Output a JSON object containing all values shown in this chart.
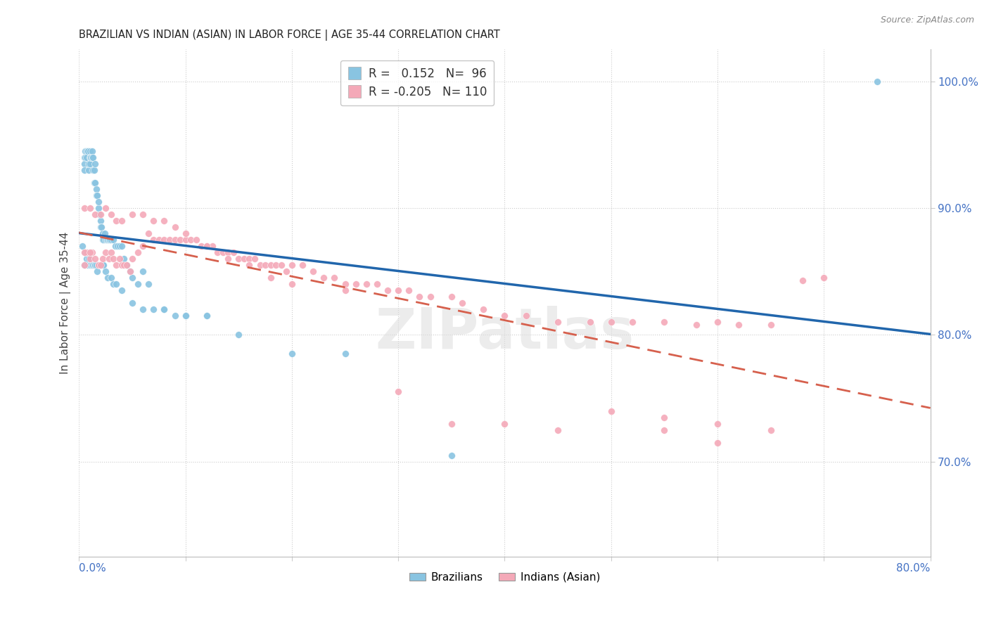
{
  "title": "BRAZILIAN VS INDIAN (ASIAN) IN LABOR FORCE | AGE 35-44 CORRELATION CHART",
  "source": "Source: ZipAtlas.com",
  "ylabel": "In Labor Force | Age 35-44",
  "right_yticks": [
    0.7,
    0.8,
    0.9,
    1.0
  ],
  "right_yticklabels": [
    "70.0%",
    "80.0%",
    "90.0%",
    "100.0%"
  ],
  "xlim": [
    0.0,
    0.8
  ],
  "ylim": [
    0.625,
    1.025
  ],
  "blue_R": 0.152,
  "blue_N": 96,
  "pink_R": -0.205,
  "pink_N": 110,
  "blue_color": "#89c4e1",
  "pink_color": "#f4a9b8",
  "blue_line_color": "#2166ac",
  "pink_line_color": "#d6604d",
  "legend_blue_label": "Brazilians",
  "legend_pink_label": "Indians (Asian)",
  "watermark": "ZIPatlas",
  "blue_scatter_x": [
    0.003,
    0.005,
    0.005,
    0.005,
    0.006,
    0.006,
    0.007,
    0.007,
    0.008,
    0.008,
    0.009,
    0.009,
    0.01,
    0.01,
    0.01,
    0.011,
    0.011,
    0.012,
    0.012,
    0.013,
    0.013,
    0.014,
    0.014,
    0.015,
    0.015,
    0.016,
    0.016,
    0.017,
    0.018,
    0.018,
    0.019,
    0.02,
    0.02,
    0.021,
    0.022,
    0.022,
    0.023,
    0.024,
    0.025,
    0.026,
    0.027,
    0.028,
    0.029,
    0.03,
    0.032,
    0.034,
    0.036,
    0.038,
    0.04,
    0.042,
    0.045,
    0.048,
    0.05,
    0.055,
    0.06,
    0.065,
    0.07,
    0.08,
    0.09,
    0.1,
    0.12,
    0.15,
    0.2,
    0.25,
    0.35,
    0.75,
    0.005,
    0.006,
    0.007,
    0.008,
    0.009,
    0.01,
    0.011,
    0.012,
    0.013,
    0.014,
    0.015,
    0.016,
    0.017,
    0.018,
    0.019,
    0.02,
    0.021,
    0.022,
    0.023,
    0.025,
    0.027,
    0.03,
    0.032,
    0.035,
    0.04,
    0.05,
    0.06,
    0.08,
    0.1,
    0.12
  ],
  "blue_scatter_y": [
    0.87,
    0.94,
    0.935,
    0.93,
    0.945,
    0.94,
    0.945,
    0.94,
    0.945,
    0.945,
    0.93,
    0.935,
    0.945,
    0.94,
    0.935,
    0.94,
    0.94,
    0.945,
    0.94,
    0.94,
    0.93,
    0.93,
    0.92,
    0.92,
    0.935,
    0.915,
    0.91,
    0.91,
    0.9,
    0.905,
    0.895,
    0.89,
    0.885,
    0.885,
    0.88,
    0.875,
    0.875,
    0.88,
    0.875,
    0.875,
    0.875,
    0.875,
    0.875,
    0.875,
    0.875,
    0.87,
    0.87,
    0.87,
    0.87,
    0.86,
    0.855,
    0.85,
    0.845,
    0.84,
    0.85,
    0.84,
    0.82,
    0.82,
    0.815,
    0.815,
    0.815,
    0.8,
    0.785,
    0.785,
    0.705,
    1.0,
    0.855,
    0.865,
    0.86,
    0.855,
    0.86,
    0.855,
    0.855,
    0.855,
    0.855,
    0.855,
    0.855,
    0.855,
    0.85,
    0.855,
    0.855,
    0.855,
    0.855,
    0.855,
    0.855,
    0.85,
    0.845,
    0.845,
    0.84,
    0.84,
    0.835,
    0.825,
    0.82,
    0.82,
    0.815,
    0.815
  ],
  "pink_scatter_x": [
    0.005,
    0.007,
    0.01,
    0.012,
    0.015,
    0.018,
    0.02,
    0.022,
    0.025,
    0.028,
    0.03,
    0.032,
    0.035,
    0.038,
    0.04,
    0.042,
    0.045,
    0.048,
    0.05,
    0.055,
    0.06,
    0.065,
    0.07,
    0.075,
    0.08,
    0.085,
    0.09,
    0.095,
    0.1,
    0.105,
    0.11,
    0.115,
    0.12,
    0.125,
    0.13,
    0.135,
    0.14,
    0.145,
    0.15,
    0.155,
    0.16,
    0.165,
    0.17,
    0.175,
    0.18,
    0.185,
    0.19,
    0.195,
    0.2,
    0.21,
    0.22,
    0.23,
    0.24,
    0.25,
    0.26,
    0.27,
    0.28,
    0.29,
    0.3,
    0.31,
    0.32,
    0.33,
    0.35,
    0.36,
    0.38,
    0.4,
    0.42,
    0.45,
    0.48,
    0.5,
    0.52,
    0.55,
    0.58,
    0.6,
    0.62,
    0.65,
    0.68,
    0.7,
    0.005,
    0.01,
    0.015,
    0.02,
    0.025,
    0.03,
    0.035,
    0.04,
    0.05,
    0.06,
    0.07,
    0.08,
    0.09,
    0.1,
    0.12,
    0.14,
    0.16,
    0.18,
    0.2,
    0.25,
    0.3,
    0.35,
    0.4,
    0.45,
    0.5,
    0.55,
    0.6,
    0.65,
    0.55,
    0.6,
    0.005,
    0.01
  ],
  "pink_scatter_y": [
    0.855,
    0.865,
    0.86,
    0.865,
    0.86,
    0.855,
    0.855,
    0.86,
    0.865,
    0.86,
    0.865,
    0.86,
    0.855,
    0.86,
    0.855,
    0.855,
    0.855,
    0.85,
    0.86,
    0.865,
    0.87,
    0.88,
    0.875,
    0.875,
    0.875,
    0.875,
    0.875,
    0.875,
    0.875,
    0.875,
    0.875,
    0.87,
    0.87,
    0.87,
    0.865,
    0.865,
    0.865,
    0.865,
    0.86,
    0.86,
    0.86,
    0.86,
    0.855,
    0.855,
    0.855,
    0.855,
    0.855,
    0.85,
    0.855,
    0.855,
    0.85,
    0.845,
    0.845,
    0.84,
    0.84,
    0.84,
    0.84,
    0.835,
    0.835,
    0.835,
    0.83,
    0.83,
    0.83,
    0.825,
    0.82,
    0.815,
    0.815,
    0.81,
    0.81,
    0.81,
    0.81,
    0.81,
    0.808,
    0.81,
    0.808,
    0.808,
    0.843,
    0.845,
    0.9,
    0.9,
    0.895,
    0.895,
    0.9,
    0.895,
    0.89,
    0.89,
    0.895,
    0.895,
    0.89,
    0.89,
    0.885,
    0.88,
    0.87,
    0.86,
    0.855,
    0.845,
    0.84,
    0.835,
    0.755,
    0.73,
    0.73,
    0.725,
    0.74,
    0.725,
    0.73,
    0.725,
    0.735,
    0.715,
    0.865,
    0.865
  ]
}
